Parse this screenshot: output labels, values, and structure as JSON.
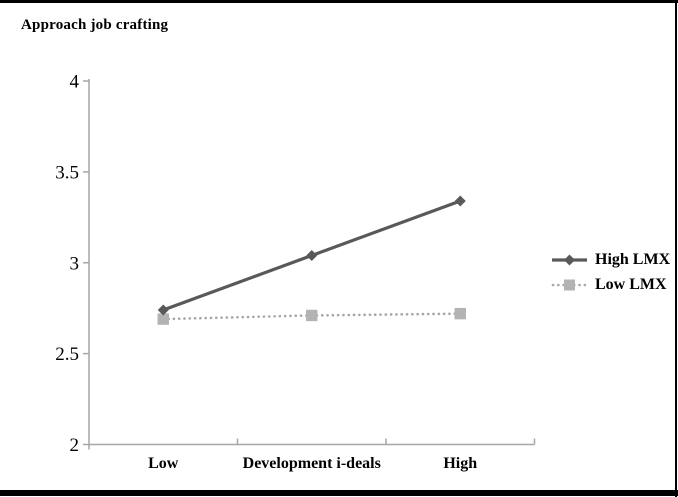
{
  "figure_title": "Approach job crafting",
  "chart_data": {
    "type": "line",
    "title": "Approach job crafting",
    "categories": [
      "Low",
      "Development i-deals",
      "High"
    ],
    "series": [
      {
        "name": "High LMX",
        "values": [
          2.74,
          3.04,
          3.34
        ],
        "line_style": "solid",
        "marker": "diamond",
        "line_color": "#595959",
        "marker_fill": "#595959"
      },
      {
        "name": "Low LMX",
        "values": [
          2.69,
          2.71,
          2.72
        ],
        "line_style": "dotted",
        "marker": "square",
        "line_color": "#a6a6a6",
        "marker_fill": "#b3b3b3"
      }
    ],
    "ylim": [
      2,
      4
    ],
    "y_ticks": [
      2,
      2.5,
      3,
      3.5,
      4
    ],
    "y_tick_labels": [
      "2",
      "2.5",
      "3",
      "3.5",
      "4"
    ],
    "xlabel": "",
    "ylabel": "",
    "grid": false,
    "legend_position": "right",
    "axis_color": "#a6a6a6",
    "text_color": "#000000"
  }
}
